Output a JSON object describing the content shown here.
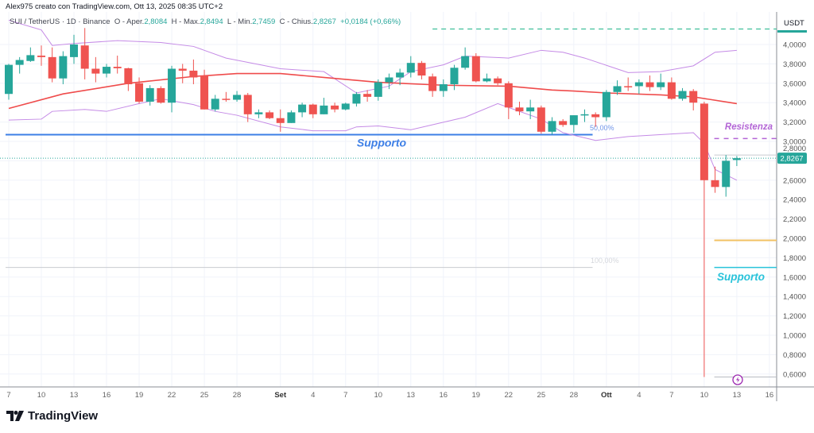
{
  "header": {
    "credit": "Alex975 creato con TradingView.com, Ott 13, 2025 08:35 UTC+2",
    "symbol": "SUI / TetherUS · 1D · Binance",
    "open_label": "O - Aper.",
    "open": "2,8084",
    "high_label": "H - Max.",
    "high": "2,8494",
    "low_label": "L - Min.",
    "low": "2,7459",
    "close_label": "C - Chius.",
    "close": "2,8267",
    "change": "+0,0184 (+0,66%)"
  },
  "logo": {
    "text": "TradingView"
  },
  "colors": {
    "up": "#26a69a",
    "down": "#ef5350",
    "ma": "#ef4b4b",
    "bands": "#c58be6",
    "support_blue": "#3d7fe6",
    "support_cyan": "#29c3da",
    "resistance": "#b366d6",
    "orange": "#f2c263",
    "top_dashed": "#3fbf9a"
  },
  "chart_data": {
    "type": "candlestick",
    "currency": "USDT",
    "ylim": [
      0.5,
      4.3
    ],
    "yticks": [
      "0,6000",
      "0,8000",
      "1,0000",
      "1,2000",
      "1,4000",
      "1,6000",
      "1,8000",
      "2,0000",
      "2,2000",
      "2,4000",
      "2,6000",
      "2,8000",
      "3,0000",
      "3,2000",
      "3,4000",
      "3,6000",
      "3,8000",
      "4,0000"
    ],
    "ytick_values": [
      0.6,
      0.8,
      1.0,
      1.2,
      1.4,
      1.6,
      1.8,
      2.0,
      2.2,
      2.4,
      2.6,
      2.8,
      3.0,
      3.2,
      3.4,
      3.6,
      3.8,
      4.0
    ],
    "xticks": [
      {
        "date": "2025-08-07",
        "label": "7"
      },
      {
        "date": "2025-08-10",
        "label": "10"
      },
      {
        "date": "2025-08-13",
        "label": "13"
      },
      {
        "date": "2025-08-16",
        "label": "16"
      },
      {
        "date": "2025-08-19",
        "label": "19"
      },
      {
        "date": "2025-08-22",
        "label": "22"
      },
      {
        "date": "2025-08-25",
        "label": "25"
      },
      {
        "date": "2025-08-28",
        "label": "28"
      },
      {
        "date": "2025-09-01",
        "label": "Set",
        "bold": true
      },
      {
        "date": "2025-09-04",
        "label": "4"
      },
      {
        "date": "2025-09-07",
        "label": "7"
      },
      {
        "date": "2025-09-10",
        "label": "10"
      },
      {
        "date": "2025-09-13",
        "label": "13"
      },
      {
        "date": "2025-09-16",
        "label": "16"
      },
      {
        "date": "2025-09-19",
        "label": "19"
      },
      {
        "date": "2025-09-22",
        "label": "22"
      },
      {
        "date": "2025-09-25",
        "label": "25"
      },
      {
        "date": "2025-09-28",
        "label": "28"
      },
      {
        "date": "2025-10-01",
        "label": "Ott",
        "bold": true
      },
      {
        "date": "2025-10-04",
        "label": "4"
      },
      {
        "date": "2025-10-07",
        "label": "7"
      },
      {
        "date": "2025-10-10",
        "label": "10"
      },
      {
        "date": "2025-10-13",
        "label": "13"
      },
      {
        "date": "2025-10-16",
        "label": "16"
      }
    ],
    "last_price": {
      "value": 2.8267,
      "label": "2,8267"
    },
    "candles_columns": [
      "date",
      "open",
      "high",
      "low",
      "close"
    ],
    "candles": [
      [
        "2025-08-07",
        3.49,
        3.8,
        3.43,
        3.79
      ],
      [
        "2025-08-08",
        3.79,
        3.87,
        3.7,
        3.84
      ],
      [
        "2025-08-09",
        3.83,
        3.97,
        3.82,
        3.89
      ],
      [
        "2025-08-10",
        3.885,
        3.99,
        3.78,
        3.87
      ],
      [
        "2025-08-11",
        3.87,
        3.97,
        3.61,
        3.65
      ],
      [
        "2025-08-12",
        3.65,
        3.93,
        3.59,
        3.88
      ],
      [
        "2025-08-13",
        3.87,
        4.1,
        3.8,
        4.0
      ],
      [
        "2025-08-14",
        3.99,
        4.17,
        3.64,
        3.75
      ],
      [
        "2025-08-15",
        3.75,
        3.87,
        3.61,
        3.7
      ],
      [
        "2025-08-16",
        3.7,
        3.8,
        3.66,
        3.77
      ],
      [
        "2025-08-17",
        3.77,
        3.885,
        3.7,
        3.755
      ],
      [
        "2025-08-18",
        3.755,
        3.76,
        3.52,
        3.59
      ],
      [
        "2025-08-19",
        3.6,
        3.66,
        3.39,
        3.41
      ],
      [
        "2025-08-20",
        3.41,
        3.58,
        3.37,
        3.55
      ],
      [
        "2025-08-21",
        3.55,
        3.57,
        3.39,
        3.4
      ],
      [
        "2025-08-22",
        3.4,
        3.78,
        3.3,
        3.75
      ],
      [
        "2025-08-23",
        3.75,
        3.8,
        3.6,
        3.73
      ],
      [
        "2025-08-24",
        3.73,
        3.845,
        3.59,
        3.66
      ],
      [
        "2025-08-25",
        3.68,
        3.74,
        3.33,
        3.33
      ],
      [
        "2025-08-26",
        3.33,
        3.48,
        3.31,
        3.44
      ],
      [
        "2025-08-27",
        3.44,
        3.51,
        3.41,
        3.43
      ],
      [
        "2025-08-28",
        3.43,
        3.52,
        3.41,
        3.48
      ],
      [
        "2025-08-29",
        3.48,
        3.5,
        3.2,
        3.28
      ],
      [
        "2025-08-30",
        3.28,
        3.33,
        3.24,
        3.3
      ],
      [
        "2025-08-31",
        3.3,
        3.32,
        3.23,
        3.24
      ],
      [
        "2025-09-01",
        3.24,
        3.33,
        3.1,
        3.19
      ],
      [
        "2025-09-02",
        3.19,
        3.32,
        3.19,
        3.3
      ],
      [
        "2025-09-03",
        3.3,
        3.4,
        3.25,
        3.38
      ],
      [
        "2025-09-04",
        3.38,
        3.39,
        3.24,
        3.28
      ],
      [
        "2025-09-05",
        3.28,
        3.45,
        3.28,
        3.37
      ],
      [
        "2025-09-06",
        3.37,
        3.4,
        3.3,
        3.33
      ],
      [
        "2025-09-07",
        3.33,
        3.4,
        3.32,
        3.39
      ],
      [
        "2025-09-08",
        3.39,
        3.51,
        3.36,
        3.49
      ],
      [
        "2025-09-09",
        3.49,
        3.53,
        3.41,
        3.46
      ],
      [
        "2025-09-10",
        3.46,
        3.64,
        3.42,
        3.61
      ],
      [
        "2025-09-11",
        3.61,
        3.7,
        3.54,
        3.66
      ],
      [
        "2025-09-12",
        3.66,
        3.75,
        3.58,
        3.71
      ],
      [
        "2025-09-13",
        3.71,
        3.88,
        3.66,
        3.81
      ],
      [
        "2025-09-14",
        3.81,
        3.83,
        3.64,
        3.68
      ],
      [
        "2025-09-15",
        3.67,
        3.7,
        3.46,
        3.52
      ],
      [
        "2025-09-16",
        3.52,
        3.64,
        3.46,
        3.59
      ],
      [
        "2025-09-17",
        3.59,
        3.79,
        3.53,
        3.76
      ],
      [
        "2025-09-18",
        3.76,
        3.97,
        3.74,
        3.88
      ],
      [
        "2025-09-19",
        3.88,
        3.91,
        3.61,
        3.62
      ],
      [
        "2025-09-20",
        3.62,
        3.7,
        3.61,
        3.65
      ],
      [
        "2025-09-21",
        3.65,
        3.67,
        3.58,
        3.6
      ],
      [
        "2025-09-22",
        3.6,
        3.62,
        3.23,
        3.35
      ],
      [
        "2025-09-23",
        3.35,
        3.41,
        3.27,
        3.31
      ],
      [
        "2025-09-24",
        3.31,
        3.43,
        3.23,
        3.35
      ],
      [
        "2025-09-25",
        3.35,
        3.37,
        3.08,
        3.1
      ],
      [
        "2025-09-26",
        3.1,
        3.25,
        3.07,
        3.21
      ],
      [
        "2025-09-27",
        3.21,
        3.23,
        3.15,
        3.17
      ],
      [
        "2025-09-28",
        3.17,
        3.27,
        3.09,
        3.27
      ],
      [
        "2025-09-29",
        3.27,
        3.33,
        3.2,
        3.28
      ],
      [
        "2025-09-30",
        3.28,
        3.3,
        3.15,
        3.25
      ],
      [
        "2025-10-01",
        3.25,
        3.53,
        3.21,
        3.51
      ],
      [
        "2025-10-02",
        3.51,
        3.63,
        3.48,
        3.57
      ],
      [
        "2025-10-03",
        3.57,
        3.66,
        3.52,
        3.565
      ],
      [
        "2025-10-04",
        3.57,
        3.64,
        3.49,
        3.61
      ],
      [
        "2025-10-05",
        3.61,
        3.68,
        3.52,
        3.56
      ],
      [
        "2025-10-06",
        3.56,
        3.7,
        3.53,
        3.61
      ],
      [
        "2025-10-07",
        3.61,
        3.66,
        3.43,
        3.44
      ],
      [
        "2025-10-08",
        3.44,
        3.55,
        3.42,
        3.52
      ],
      [
        "2025-10-09",
        3.52,
        3.54,
        3.32,
        3.4
      ],
      [
        "2025-10-10",
        3.39,
        3.41,
        0.57,
        2.6
      ],
      [
        "2025-10-11",
        2.6,
        2.74,
        2.47,
        2.53
      ],
      [
        "2025-10-12",
        2.53,
        2.86,
        2.43,
        2.8
      ],
      [
        "2025-10-13",
        2.8084,
        2.8494,
        2.7459,
        2.8267
      ]
    ],
    "moving_average": [
      [
        "2025-08-07",
        3.34
      ],
      [
        "2025-08-12",
        3.49
      ],
      [
        "2025-08-18",
        3.6
      ],
      [
        "2025-08-24",
        3.67
      ],
      [
        "2025-08-28",
        3.7
      ],
      [
        "2025-09-01",
        3.7
      ],
      [
        "2025-09-06",
        3.65
      ],
      [
        "2025-09-10",
        3.61
      ],
      [
        "2025-09-12",
        3.6
      ],
      [
        "2025-09-16",
        3.58
      ],
      [
        "2025-09-22",
        3.57
      ],
      [
        "2025-09-26",
        3.53
      ],
      [
        "2025-09-28",
        3.52
      ],
      [
        "2025-10-01",
        3.5
      ],
      [
        "2025-10-06",
        3.48
      ],
      [
        "2025-10-09",
        3.46
      ],
      [
        "2025-10-13",
        3.39
      ]
    ],
    "bollinger_upper": [
      [
        "2025-08-07",
        4.25
      ],
      [
        "2025-08-10",
        4.15
      ],
      [
        "2025-08-11",
        3.99
      ],
      [
        "2025-08-13",
        4.01
      ],
      [
        "2025-08-17",
        4.04
      ],
      [
        "2025-08-21",
        4.02
      ],
      [
        "2025-08-24",
        3.98
      ],
      [
        "2025-08-27",
        3.86
      ],
      [
        "2025-09-01",
        3.75
      ],
      [
        "2025-09-05",
        3.72
      ],
      [
        "2025-09-08",
        3.5
      ],
      [
        "2025-09-11",
        3.57
      ],
      [
        "2025-09-13",
        3.72
      ],
      [
        "2025-09-16",
        3.79
      ],
      [
        "2025-09-18",
        3.88
      ],
      [
        "2025-09-22",
        3.86
      ],
      [
        "2025-09-25",
        3.94
      ],
      [
        "2025-09-27",
        3.92
      ],
      [
        "2025-09-29",
        3.86
      ],
      [
        "2025-10-03",
        3.71
      ],
      [
        "2025-10-06",
        3.72
      ],
      [
        "2025-10-09",
        3.78
      ],
      [
        "2025-10-11",
        3.92
      ],
      [
        "2025-10-13",
        3.94
      ]
    ],
    "bollinger_lower": [
      [
        "2025-08-07",
        3.22
      ],
      [
        "2025-08-10",
        3.23
      ],
      [
        "2025-08-11",
        3.31
      ],
      [
        "2025-08-14",
        3.33
      ],
      [
        "2025-08-16",
        3.31
      ],
      [
        "2025-08-19",
        3.39
      ],
      [
        "2025-08-21",
        3.44
      ],
      [
        "2025-08-24",
        3.38
      ],
      [
        "2025-08-26",
        3.31
      ],
      [
        "2025-08-28",
        3.27
      ],
      [
        "2025-09-01",
        3.15
      ],
      [
        "2025-09-04",
        3.11
      ],
      [
        "2025-09-07",
        3.11
      ],
      [
        "2025-09-08",
        3.15
      ],
      [
        "2025-09-10",
        3.16
      ],
      [
        "2025-09-13",
        3.12
      ],
      [
        "2025-09-18",
        3.25
      ],
      [
        "2025-09-21",
        3.39
      ],
      [
        "2025-09-25",
        3.23
      ],
      [
        "2025-09-27",
        3.09
      ],
      [
        "2025-09-30",
        3.01
      ],
      [
        "2025-10-03",
        3.05
      ],
      [
        "2025-10-09",
        3.09
      ],
      [
        "2025-10-10",
        2.98
      ],
      [
        "2025-10-11",
        2.71
      ],
      [
        "2025-10-13",
        2.6
      ]
    ],
    "annotations": {
      "support_main": {
        "label": "Supporto",
        "value": 3.07,
        "from": "2025-08-07",
        "to": "2025-09-29"
      },
      "fib_50": {
        "label": "50,00%",
        "value": 3.07
      },
      "fib_100": {
        "label": "100,00%",
        "value": 1.7,
        "from": "2025-08-07",
        "to": "2025-09-29"
      },
      "top_level": {
        "value": 4.16,
        "from": "2025-09-15"
      },
      "resistance": {
        "label": "Resistenza",
        "value": 3.03,
        "from": "2025-10-11"
      },
      "orange_level": {
        "value": 1.98,
        "from": "2025-10-11"
      },
      "support_low": {
        "label": "Supporto",
        "value": 1.7,
        "from": "2025-10-11"
      },
      "low_level": {
        "value": 0.57,
        "from": "2025-10-11"
      },
      "range_box_top": {
        "value": 2.86,
        "from": "2025-10-11"
      }
    }
  }
}
